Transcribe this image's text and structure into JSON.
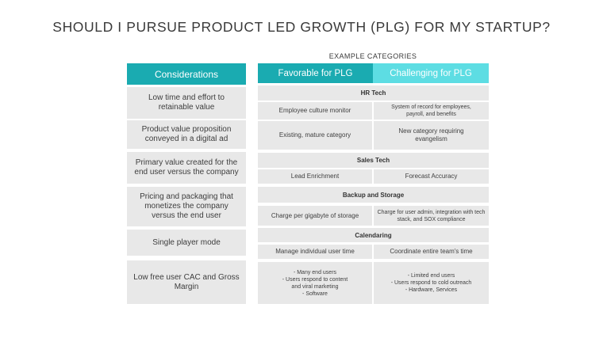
{
  "title": "SHOULD I PURSUE PRODUCT LED GROWTH (PLG) FOR MY STARTUP?",
  "subheading": "EXAMPLE CATEGORIES",
  "colors": {
    "teal_dark": "#1aabb1",
    "teal_light": "#5ddde3",
    "gray_cell": "#e8e8e8"
  },
  "headers": {
    "considerations": "Considerations",
    "favorable": "Favorable for PLG",
    "challenging": "Challenging for PLG"
  },
  "considerations": [
    "Low time and effort to retainable value",
    "Product value proposition conveyed in a digital ad",
    "Primary value created for the end user versus the company",
    "Pricing and packaging that monetizes the company versus the end user",
    "Single player mode",
    "Low free user CAC and Gross Margin"
  ],
  "categories": [
    {
      "name": "HR Tech",
      "examples": [
        {
          "favorable": "Employee culture monitor",
          "challenging": "System of record for employees, payroll, and benefits"
        },
        {
          "favorable": "Existing, mature category",
          "challenging": "New category requiring evangelism"
        }
      ]
    },
    {
      "name": "Sales Tech",
      "examples": [
        {
          "favorable": "Lead Enrichment",
          "challenging": "Forecast Accuracy"
        }
      ]
    },
    {
      "name": "Backup and Storage",
      "examples": [
        {
          "favorable": "Charge per gigabyte of storage",
          "challenging": "Charge for user admin, integration with tech stack, and SOX compliance"
        }
      ]
    },
    {
      "name": "Calendaring",
      "examples": [
        {
          "favorable": "Manage individual user time",
          "challenging": "Coordinate entire team's time"
        }
      ]
    }
  ],
  "summary": {
    "favorable": "- Many end users\n- Users respond to content\nand viral marketing\n- Software",
    "challenging": "- Limited end users\n- Users respond to cold outreach\n- Hardware, Services"
  }
}
